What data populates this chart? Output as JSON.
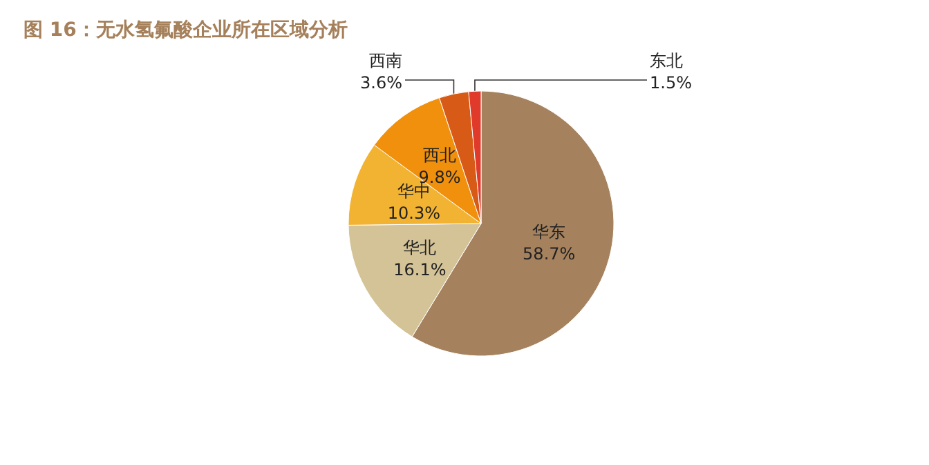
{
  "chart_data": {
    "type": "pie",
    "title": "图 16：无水氢氟酸企业所在区域分析",
    "categories": [
      "华东",
      "华北",
      "华中",
      "西北",
      "西南",
      "东北"
    ],
    "values": [
      58.7,
      16.1,
      10.3,
      9.8,
      3.6,
      1.5
    ],
    "value_labels": [
      "58.7%",
      "16.1%",
      "10.3%",
      "9.8%",
      "3.6%",
      "1.5%"
    ],
    "colors": [
      "#a5825d",
      "#d5c398",
      "#f3b332",
      "#f0900c",
      "#d75a17",
      "#e03a2a"
    ],
    "legend": false
  }
}
